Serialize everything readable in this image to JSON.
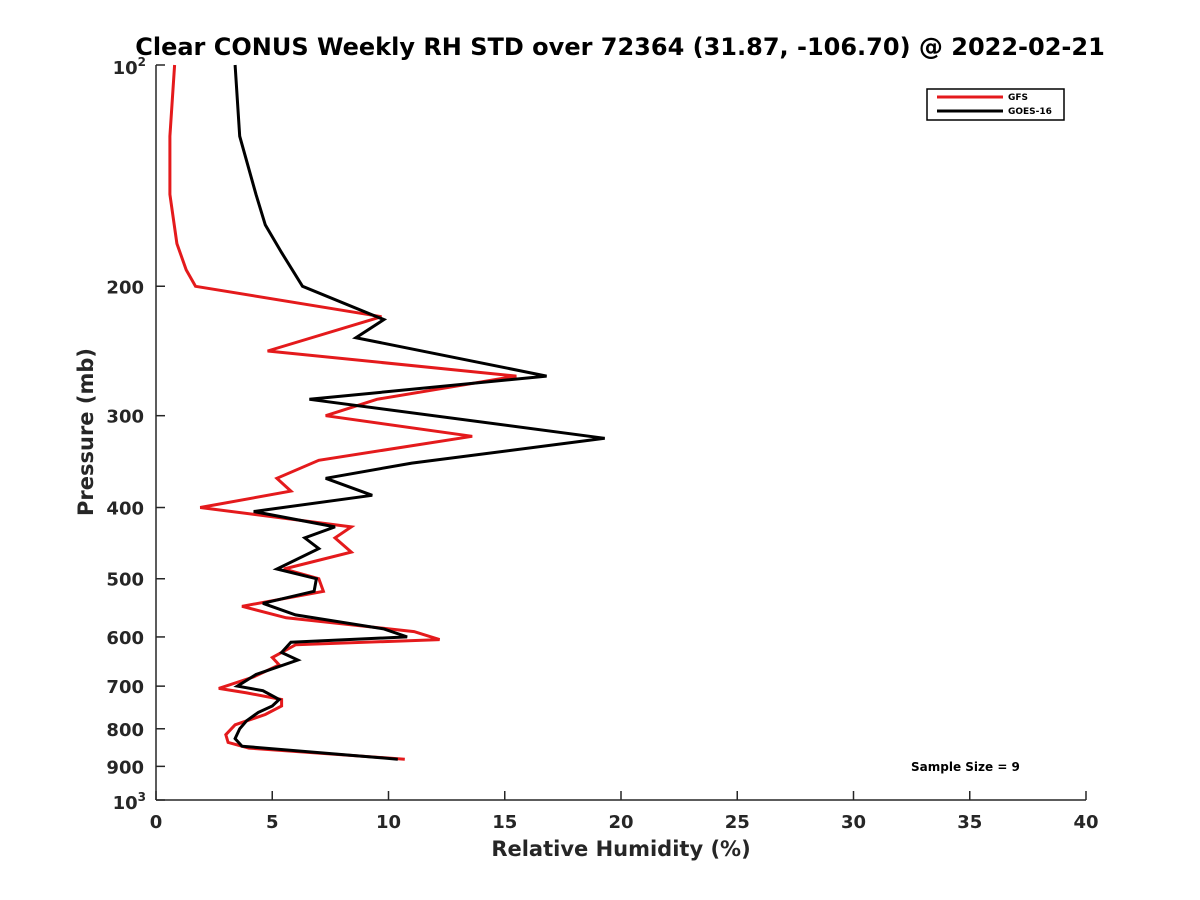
{
  "chart_data": {
    "type": "line",
    "title": "Clear CONUS Weekly RH STD over 72364 (31.87, -106.70) @ 2022-02-21",
    "xlabel": "Relative Humidity (%)",
    "ylabel": "Pressure (mb)",
    "xlim": [
      0,
      40
    ],
    "ylim": [
      100,
      1000
    ],
    "y_scale": "log",
    "y_reversed": true,
    "grid": false,
    "legend_position": "top-right",
    "x_ticks": [
      "0",
      "5",
      "10",
      "15",
      "20",
      "25",
      "30",
      "35",
      "40"
    ],
    "y_ticks": [
      {
        "value": 100,
        "base": "10",
        "exp": "2"
      },
      {
        "value": 200,
        "label": "200"
      },
      {
        "value": 300,
        "label": "300"
      },
      {
        "value": 400,
        "label": "400"
      },
      {
        "value": 500,
        "label": "500"
      },
      {
        "value": 600,
        "label": "600"
      },
      {
        "value": 700,
        "label": "700"
      },
      {
        "value": 800,
        "label": "800"
      },
      {
        "value": 900,
        "label": "900"
      },
      {
        "value": 1000,
        "base": "10",
        "exp": "3"
      }
    ],
    "annotation": "Sample Size = 9",
    "series": [
      {
        "name": "GFS",
        "color": "#e41a1c",
        "points": [
          [
            0.8,
            100
          ],
          [
            0.6,
            125
          ],
          [
            0.6,
            150
          ],
          [
            0.9,
            175
          ],
          [
            1.3,
            190
          ],
          [
            1.7,
            200
          ],
          [
            9.7,
            220
          ],
          [
            4.8,
            245
          ],
          [
            15.5,
            265
          ],
          [
            9.5,
            285
          ],
          [
            7.3,
            300
          ],
          [
            13.6,
            320
          ],
          [
            7.0,
            345
          ],
          [
            5.2,
            365
          ],
          [
            5.8,
            380
          ],
          [
            1.9,
            400
          ],
          [
            8.4,
            425
          ],
          [
            7.7,
            440
          ],
          [
            8.4,
            460
          ],
          [
            5.5,
            485
          ],
          [
            7.0,
            500
          ],
          [
            7.2,
            520
          ],
          [
            3.7,
            545
          ],
          [
            5.6,
            565
          ],
          [
            11.1,
            590
          ],
          [
            12.2,
            605
          ],
          [
            6.0,
            615
          ],
          [
            5.0,
            640
          ],
          [
            5.3,
            655
          ],
          [
            4.2,
            680
          ],
          [
            2.7,
            705
          ],
          [
            3.9,
            715
          ],
          [
            5.4,
            730
          ],
          [
            5.4,
            745
          ],
          [
            4.7,
            765
          ],
          [
            3.4,
            790
          ],
          [
            3.0,
            815
          ],
          [
            3.1,
            835
          ],
          [
            4.0,
            850
          ],
          [
            10.7,
            880
          ]
        ]
      },
      {
        "name": "GOES-16",
        "color": "#000000",
        "points": [
          [
            3.4,
            100
          ],
          [
            3.6,
            125
          ],
          [
            4.3,
            150
          ],
          [
            4.7,
            165
          ],
          [
            5.4,
            180
          ],
          [
            6.3,
            200
          ],
          [
            9.8,
            222
          ],
          [
            8.6,
            235
          ],
          [
            16.8,
            265
          ],
          [
            6.6,
            285
          ],
          [
            19.3,
            322
          ],
          [
            11.0,
            348
          ],
          [
            7.3,
            365
          ],
          [
            9.3,
            385
          ],
          [
            4.2,
            405
          ],
          [
            7.7,
            425
          ],
          [
            6.4,
            440
          ],
          [
            7.0,
            455
          ],
          [
            5.2,
            485
          ],
          [
            6.9,
            500
          ],
          [
            6.8,
            520
          ],
          [
            4.6,
            540
          ],
          [
            6.0,
            560
          ],
          [
            9.8,
            585
          ],
          [
            10.8,
            600
          ],
          [
            5.8,
            610
          ],
          [
            5.4,
            630
          ],
          [
            6.1,
            645
          ],
          [
            4.3,
            675
          ],
          [
            3.5,
            700
          ],
          [
            4.6,
            710
          ],
          [
            5.3,
            730
          ],
          [
            5.0,
            745
          ],
          [
            4.4,
            760
          ],
          [
            3.9,
            780
          ],
          [
            3.6,
            800
          ],
          [
            3.4,
            825
          ],
          [
            3.7,
            845
          ],
          [
            10.4,
            880
          ]
        ]
      }
    ]
  }
}
